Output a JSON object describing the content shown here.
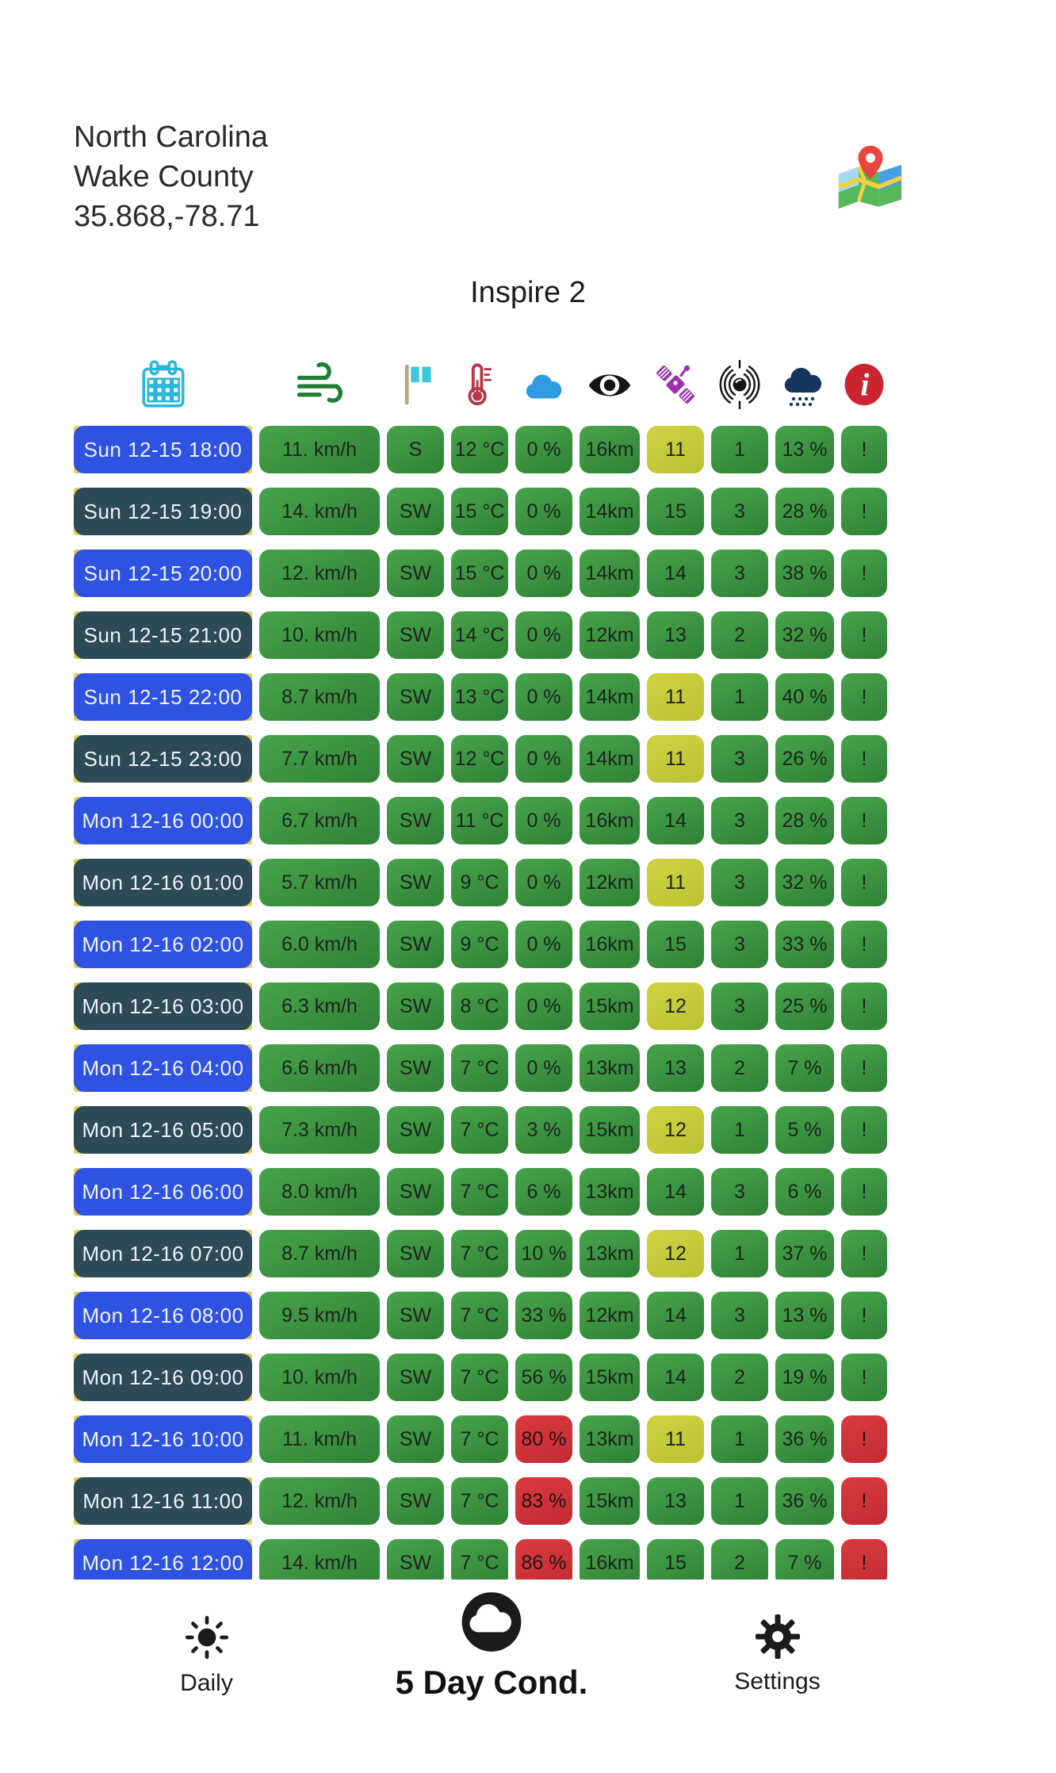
{
  "location": {
    "region": "North Carolina",
    "county": "Wake County",
    "coords": "35.868,-78.71"
  },
  "drone_title": "Inspire 2",
  "columns": [
    {
      "key": "time",
      "icon": "calendar-icon"
    },
    {
      "key": "wind_speed",
      "icon": "wind-icon"
    },
    {
      "key": "wind_direction",
      "icon": "flag-icon"
    },
    {
      "key": "temperature",
      "icon": "thermometer-icon"
    },
    {
      "key": "cloud_cover",
      "icon": "cloud-icon"
    },
    {
      "key": "visibility",
      "icon": "eye-icon"
    },
    {
      "key": "satellites",
      "icon": "satellite-icon"
    },
    {
      "key": "kp_index",
      "icon": "magnetosphere-icon"
    },
    {
      "key": "precipitation",
      "icon": "rain-cloud-icon"
    },
    {
      "key": "warnings",
      "icon": "info-icon"
    }
  ],
  "rows": [
    {
      "time": "Sun 12-15 18:00",
      "variant": "blue",
      "cells": [
        {
          "v": "11. km/h",
          "c": "g"
        },
        {
          "v": "S",
          "c": "g"
        },
        {
          "v": "12 °C",
          "c": "g"
        },
        {
          "v": "0 %",
          "c": "g"
        },
        {
          "v": "16km",
          "c": "g"
        },
        {
          "v": "11",
          "c": "y"
        },
        {
          "v": "1",
          "c": "g"
        },
        {
          "v": "13 %",
          "c": "g"
        },
        {
          "v": "!",
          "c": "g"
        }
      ]
    },
    {
      "time": "Sun 12-15 19:00",
      "variant": "teal",
      "cells": [
        {
          "v": "14. km/h",
          "c": "g"
        },
        {
          "v": "SW",
          "c": "g"
        },
        {
          "v": "15 °C",
          "c": "g"
        },
        {
          "v": "0 %",
          "c": "g"
        },
        {
          "v": "14km",
          "c": "g"
        },
        {
          "v": "15",
          "c": "g"
        },
        {
          "v": "3",
          "c": "g"
        },
        {
          "v": "28 %",
          "c": "g"
        },
        {
          "v": "!",
          "c": "g"
        }
      ]
    },
    {
      "time": "Sun 12-15 20:00",
      "variant": "blue",
      "cells": [
        {
          "v": "12. km/h",
          "c": "g"
        },
        {
          "v": "SW",
          "c": "g"
        },
        {
          "v": "15 °C",
          "c": "g"
        },
        {
          "v": "0 %",
          "c": "g"
        },
        {
          "v": "14km",
          "c": "g"
        },
        {
          "v": "14",
          "c": "g"
        },
        {
          "v": "3",
          "c": "g"
        },
        {
          "v": "38 %",
          "c": "g"
        },
        {
          "v": "!",
          "c": "g"
        }
      ]
    },
    {
      "time": "Sun 12-15 21:00",
      "variant": "teal",
      "cells": [
        {
          "v": "10. km/h",
          "c": "g"
        },
        {
          "v": "SW",
          "c": "g"
        },
        {
          "v": "14 °C",
          "c": "g"
        },
        {
          "v": "0 %",
          "c": "g"
        },
        {
          "v": "12km",
          "c": "g"
        },
        {
          "v": "13",
          "c": "g"
        },
        {
          "v": "2",
          "c": "g"
        },
        {
          "v": "32 %",
          "c": "g"
        },
        {
          "v": "!",
          "c": "g"
        }
      ]
    },
    {
      "time": "Sun 12-15 22:00",
      "variant": "blue",
      "cells": [
        {
          "v": "8.7 km/h",
          "c": "g"
        },
        {
          "v": "SW",
          "c": "g"
        },
        {
          "v": "13 °C",
          "c": "g"
        },
        {
          "v": "0 %",
          "c": "g"
        },
        {
          "v": "14km",
          "c": "g"
        },
        {
          "v": "11",
          "c": "y"
        },
        {
          "v": "1",
          "c": "g"
        },
        {
          "v": "40 %",
          "c": "g"
        },
        {
          "v": "!",
          "c": "g"
        }
      ]
    },
    {
      "time": "Sun 12-15 23:00",
      "variant": "teal",
      "cells": [
        {
          "v": "7.7 km/h",
          "c": "g"
        },
        {
          "v": "SW",
          "c": "g"
        },
        {
          "v": "12 °C",
          "c": "g"
        },
        {
          "v": "0 %",
          "c": "g"
        },
        {
          "v": "14km",
          "c": "g"
        },
        {
          "v": "11",
          "c": "y"
        },
        {
          "v": "3",
          "c": "g"
        },
        {
          "v": "26 %",
          "c": "g"
        },
        {
          "v": "!",
          "c": "g"
        }
      ]
    },
    {
      "time": "Mon 12-16 00:00",
      "variant": "blue",
      "cells": [
        {
          "v": "6.7 km/h",
          "c": "g"
        },
        {
          "v": "SW",
          "c": "g"
        },
        {
          "v": "11 °C",
          "c": "g"
        },
        {
          "v": "0 %",
          "c": "g"
        },
        {
          "v": "16km",
          "c": "g"
        },
        {
          "v": "14",
          "c": "g"
        },
        {
          "v": "3",
          "c": "g"
        },
        {
          "v": "28 %",
          "c": "g"
        },
        {
          "v": "!",
          "c": "g"
        }
      ]
    },
    {
      "time": "Mon 12-16 01:00",
      "variant": "teal",
      "cells": [
        {
          "v": "5.7 km/h",
          "c": "g"
        },
        {
          "v": "SW",
          "c": "g"
        },
        {
          "v": "9 °C",
          "c": "g"
        },
        {
          "v": "0 %",
          "c": "g"
        },
        {
          "v": "12km",
          "c": "g"
        },
        {
          "v": "11",
          "c": "y"
        },
        {
          "v": "3",
          "c": "g"
        },
        {
          "v": "32 %",
          "c": "g"
        },
        {
          "v": "!",
          "c": "g"
        }
      ]
    },
    {
      "time": "Mon 12-16 02:00",
      "variant": "blue",
      "cells": [
        {
          "v": "6.0 km/h",
          "c": "g"
        },
        {
          "v": "SW",
          "c": "g"
        },
        {
          "v": "9 °C",
          "c": "g"
        },
        {
          "v": "0 %",
          "c": "g"
        },
        {
          "v": "16km",
          "c": "g"
        },
        {
          "v": "15",
          "c": "g"
        },
        {
          "v": "3",
          "c": "g"
        },
        {
          "v": "33 %",
          "c": "g"
        },
        {
          "v": "!",
          "c": "g"
        }
      ]
    },
    {
      "time": "Mon 12-16 03:00",
      "variant": "teal",
      "cells": [
        {
          "v": "6.3 km/h",
          "c": "g"
        },
        {
          "v": "SW",
          "c": "g"
        },
        {
          "v": "8 °C",
          "c": "g"
        },
        {
          "v": "0 %",
          "c": "g"
        },
        {
          "v": "15km",
          "c": "g"
        },
        {
          "v": "12",
          "c": "y"
        },
        {
          "v": "3",
          "c": "g"
        },
        {
          "v": "25 %",
          "c": "g"
        },
        {
          "v": "!",
          "c": "g"
        }
      ]
    },
    {
      "time": "Mon 12-16 04:00",
      "variant": "blue",
      "cells": [
        {
          "v": "6.6 km/h",
          "c": "g"
        },
        {
          "v": "SW",
          "c": "g"
        },
        {
          "v": "7 °C",
          "c": "g"
        },
        {
          "v": "0 %",
          "c": "g"
        },
        {
          "v": "13km",
          "c": "g"
        },
        {
          "v": "13",
          "c": "g"
        },
        {
          "v": "2",
          "c": "g"
        },
        {
          "v": "7 %",
          "c": "g"
        },
        {
          "v": "!",
          "c": "g"
        }
      ]
    },
    {
      "time": "Mon 12-16 05:00",
      "variant": "teal",
      "cells": [
        {
          "v": "7.3 km/h",
          "c": "g"
        },
        {
          "v": "SW",
          "c": "g"
        },
        {
          "v": "7 °C",
          "c": "g"
        },
        {
          "v": "3 %",
          "c": "g"
        },
        {
          "v": "15km",
          "c": "g"
        },
        {
          "v": "12",
          "c": "y"
        },
        {
          "v": "1",
          "c": "g"
        },
        {
          "v": "5 %",
          "c": "g"
        },
        {
          "v": "!",
          "c": "g"
        }
      ]
    },
    {
      "time": "Mon 12-16 06:00",
      "variant": "blue",
      "cells": [
        {
          "v": "8.0 km/h",
          "c": "g"
        },
        {
          "v": "SW",
          "c": "g"
        },
        {
          "v": "7 °C",
          "c": "g"
        },
        {
          "v": "6 %",
          "c": "g"
        },
        {
          "v": "13km",
          "c": "g"
        },
        {
          "v": "14",
          "c": "g"
        },
        {
          "v": "3",
          "c": "g"
        },
        {
          "v": "6 %",
          "c": "g"
        },
        {
          "v": "!",
          "c": "g"
        }
      ]
    },
    {
      "time": "Mon 12-16 07:00",
      "variant": "teal",
      "cells": [
        {
          "v": "8.7 km/h",
          "c": "g"
        },
        {
          "v": "SW",
          "c": "g"
        },
        {
          "v": "7 °C",
          "c": "g"
        },
        {
          "v": "10 %",
          "c": "g"
        },
        {
          "v": "13km",
          "c": "g"
        },
        {
          "v": "12",
          "c": "y"
        },
        {
          "v": "1",
          "c": "g"
        },
        {
          "v": "37 %",
          "c": "g"
        },
        {
          "v": "!",
          "c": "g"
        }
      ]
    },
    {
      "time": "Mon 12-16 08:00",
      "variant": "blue",
      "cells": [
        {
          "v": "9.5 km/h",
          "c": "g"
        },
        {
          "v": "SW",
          "c": "g"
        },
        {
          "v": "7 °C",
          "c": "g"
        },
        {
          "v": "33 %",
          "c": "g"
        },
        {
          "v": "12km",
          "c": "g"
        },
        {
          "v": "14",
          "c": "g"
        },
        {
          "v": "3",
          "c": "g"
        },
        {
          "v": "13 %",
          "c": "g"
        },
        {
          "v": "!",
          "c": "g"
        }
      ]
    },
    {
      "time": "Mon 12-16 09:00",
      "variant": "teal",
      "cells": [
        {
          "v": "10. km/h",
          "c": "g"
        },
        {
          "v": "SW",
          "c": "g"
        },
        {
          "v": "7 °C",
          "c": "g"
        },
        {
          "v": "56 %",
          "c": "g"
        },
        {
          "v": "15km",
          "c": "g"
        },
        {
          "v": "14",
          "c": "g"
        },
        {
          "v": "2",
          "c": "g"
        },
        {
          "v": "19 %",
          "c": "g"
        },
        {
          "v": "!",
          "c": "g"
        }
      ]
    },
    {
      "time": "Mon 12-16 10:00",
      "variant": "blue",
      "cells": [
        {
          "v": "11. km/h",
          "c": "g"
        },
        {
          "v": "SW",
          "c": "g"
        },
        {
          "v": "7 °C",
          "c": "g"
        },
        {
          "v": "80 %",
          "c": "r"
        },
        {
          "v": "13km",
          "c": "g"
        },
        {
          "v": "11",
          "c": "y"
        },
        {
          "v": "1",
          "c": "g"
        },
        {
          "v": "36 %",
          "c": "g"
        },
        {
          "v": "!",
          "c": "r"
        }
      ]
    },
    {
      "time": "Mon 12-16 11:00",
      "variant": "teal",
      "cells": [
        {
          "v": "12. km/h",
          "c": "g"
        },
        {
          "v": "SW",
          "c": "g"
        },
        {
          "v": "7 °C",
          "c": "g"
        },
        {
          "v": "83 %",
          "c": "r"
        },
        {
          "v": "15km",
          "c": "g"
        },
        {
          "v": "13",
          "c": "g"
        },
        {
          "v": "1",
          "c": "g"
        },
        {
          "v": "36 %",
          "c": "g"
        },
        {
          "v": "!",
          "c": "r"
        }
      ]
    },
    {
      "time": "Mon 12-16 12:00",
      "variant": "blue",
      "cells": [
        {
          "v": "14. km/h",
          "c": "g"
        },
        {
          "v": "SW",
          "c": "g"
        },
        {
          "v": "7 °C",
          "c": "g"
        },
        {
          "v": "86 %",
          "c": "r"
        },
        {
          "v": "16km",
          "c": "g"
        },
        {
          "v": "15",
          "c": "g"
        },
        {
          "v": "2",
          "c": "g"
        },
        {
          "v": "7 %",
          "c": "g"
        },
        {
          "v": "!",
          "c": "r"
        }
      ]
    }
  ],
  "nav": {
    "daily": "Daily",
    "five_day": "5 Day Cond.",
    "settings": "Settings"
  },
  "colors": {
    "time_blue": "#2f52e2",
    "time_teal": "#2d4a57",
    "cell_green": "#3c9a41",
    "cell_yellow": "#c5cc3f",
    "cell_red": "#d0333a",
    "underlay_yellow": "#e3cf5a",
    "info_red": "#cb2431"
  }
}
